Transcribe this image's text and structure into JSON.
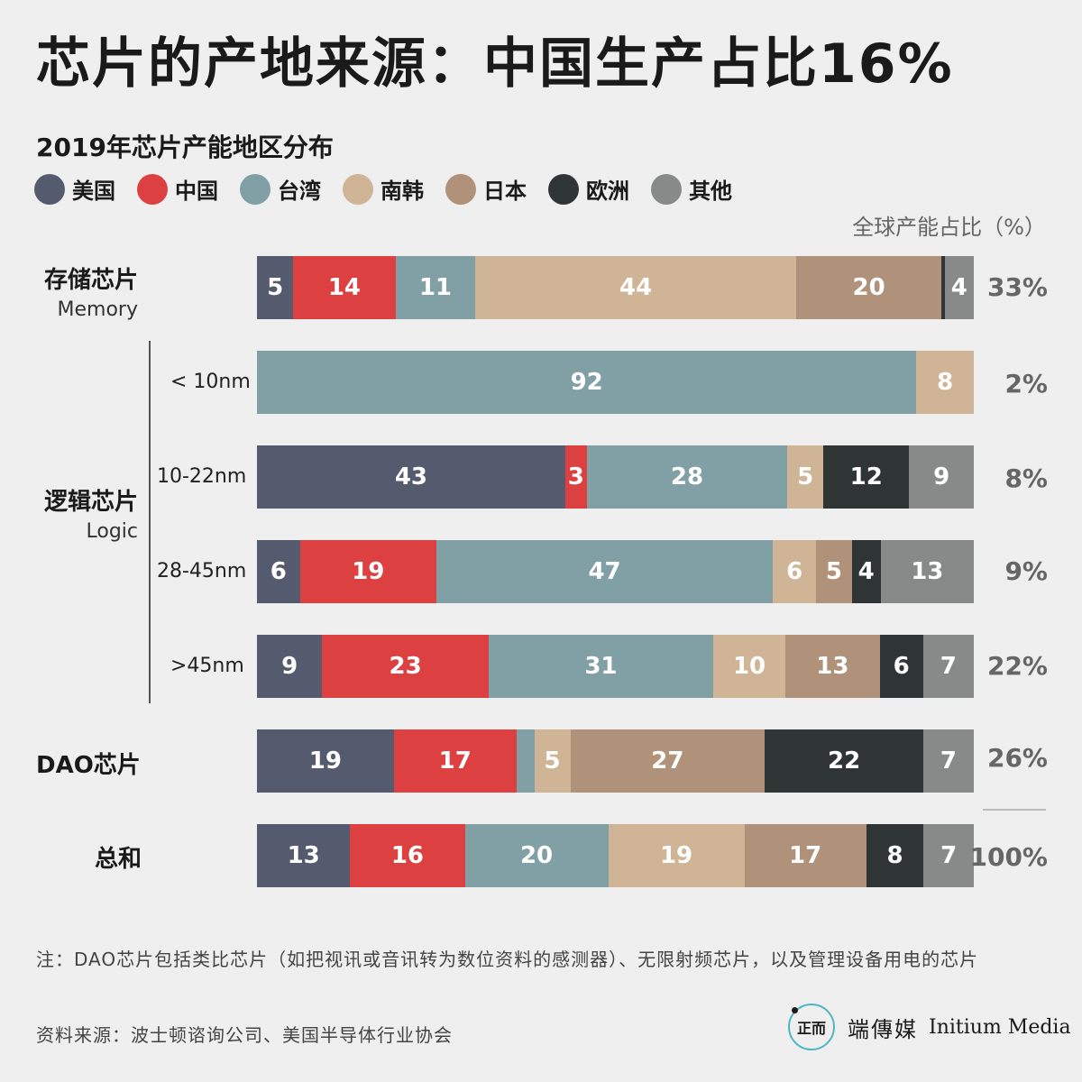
{
  "title": "芯片的产地来源：中国生产占比16%",
  "subtitle": "2019年芯片产能地区分布",
  "share_header": "全球产能占比（%）",
  "colors": {
    "美国": "#555b6e",
    "中国": "#dd4040",
    "台湾": "#80a0a5",
    "南韩": "#d0b496",
    "日本": "#b0917a",
    "欧洲": "#2f3535",
    "其他": "#888a8a",
    "separator": "#1a1a1a"
  },
  "chart_data": {
    "type": "bar",
    "stacked": true,
    "orientation": "horizontal",
    "legend_placement": "top-left",
    "grid": false,
    "title": "芯片的产地来源：中国生产占比16%",
    "subtitle": "2019年芯片产能地区分布",
    "legend": [
      "美国",
      "中国",
      "台湾",
      "南韩",
      "日本",
      "欧洲",
      "其他"
    ],
    "categories": [
      {
        "label": "存储芯片",
        "label_en": "Memory"
      },
      {
        "label": "逻辑芯片",
        "label_en": "Logic",
        "sub": "< 10nm"
      },
      {
        "label": "逻辑芯片",
        "label_en": "Logic",
        "sub": "10-22nm"
      },
      {
        "label": "逻辑芯片",
        "label_en": "Logic",
        "sub": "28-45nm"
      },
      {
        "label": "逻辑芯片",
        "label_en": "Logic",
        "sub": ">45nm"
      },
      {
        "label": "DAO芯片"
      },
      {
        "label": "总和"
      }
    ],
    "series": [
      {
        "name": "美国",
        "values": [
          5,
          0,
          43,
          6,
          9,
          19,
          13
        ]
      },
      {
        "name": "中国",
        "values": [
          14,
          0,
          3,
          19,
          23,
          17,
          16
        ]
      },
      {
        "name": "台湾",
        "values": [
          11,
          92,
          28,
          47,
          31,
          2.5,
          20
        ]
      },
      {
        "name": "南韩",
        "values": [
          44,
          8,
          5,
          6,
          10,
          5,
          19
        ]
      },
      {
        "name": "日本",
        "values": [
          20,
          0,
          0,
          5,
          13,
          27,
          17
        ]
      },
      {
        "name": "欧洲",
        "values": [
          0.4,
          0,
          12,
          4,
          6,
          22,
          8
        ]
      },
      {
        "name": "其他",
        "values": [
          4,
          0,
          9,
          13,
          7,
          7,
          7
        ]
      }
    ],
    "global_share": [
      "33%",
      "2%",
      "8%",
      "9%",
      "22%",
      "26%",
      "100%"
    ],
    "rows": [
      {
        "segs": [
          {
            "r": "美国",
            "v": 5,
            "label": "5"
          },
          {
            "r": "中国",
            "v": 14,
            "label": "14"
          },
          {
            "r": "台湾",
            "v": 11,
            "label": "11"
          },
          {
            "r": "南韩",
            "v": 44,
            "label": "44"
          },
          {
            "r": "日本",
            "v": 20,
            "label": "20"
          },
          {
            "r": "欧洲",
            "v": 0.4,
            "label": ""
          },
          {
            "r": "其他",
            "v": 4,
            "label": "4"
          }
        ]
      },
      {
        "segs": [
          {
            "r": "台湾",
            "v": 92,
            "label": "92"
          },
          {
            "r": "南韩",
            "v": 8,
            "label": "8"
          }
        ]
      },
      {
        "segs": [
          {
            "r": "美国",
            "v": 43,
            "label": "43"
          },
          {
            "r": "中国",
            "v": 3,
            "label": "3"
          },
          {
            "r": "台湾",
            "v": 28,
            "label": "28"
          },
          {
            "r": "南韩",
            "v": 5,
            "label": "5"
          },
          {
            "r": "欧洲",
            "v": 12,
            "label": "12"
          },
          {
            "r": "其他",
            "v": 9,
            "label": "9"
          }
        ]
      },
      {
        "segs": [
          {
            "r": "美国",
            "v": 6,
            "label": "6"
          },
          {
            "r": "中国",
            "v": 19,
            "label": "19"
          },
          {
            "r": "台湾",
            "v": 47,
            "label": "47"
          },
          {
            "r": "南韩",
            "v": 6,
            "label": "6"
          },
          {
            "r": "日本",
            "v": 5,
            "label": "5"
          },
          {
            "r": "欧洲",
            "v": 4,
            "label": "4"
          },
          {
            "r": "其他",
            "v": 13,
            "label": "13"
          }
        ]
      },
      {
        "segs": [
          {
            "r": "美国",
            "v": 9,
            "label": "9"
          },
          {
            "r": "中国",
            "v": 23,
            "label": "23"
          },
          {
            "r": "台湾",
            "v": 31,
            "label": "31"
          },
          {
            "r": "南韩",
            "v": 10,
            "label": "10"
          },
          {
            "r": "日本",
            "v": 13,
            "label": "13"
          },
          {
            "r": "欧洲",
            "v": 6,
            "label": "6"
          },
          {
            "r": "其他",
            "v": 7,
            "label": "7"
          }
        ]
      },
      {
        "segs": [
          {
            "r": "美国",
            "v": 19,
            "label": "19"
          },
          {
            "r": "中国",
            "v": 17,
            "label": "17"
          },
          {
            "r": "台湾",
            "v": 2.5,
            "label": ""
          },
          {
            "r": "南韩",
            "v": 5,
            "label": "5"
          },
          {
            "r": "日本",
            "v": 27,
            "label": "27"
          },
          {
            "r": "欧洲",
            "v": 22,
            "label": "22"
          },
          {
            "r": "其他",
            "v": 7,
            "label": "7"
          }
        ]
      },
      {
        "segs": [
          {
            "r": "美国",
            "v": 13,
            "label": "13"
          },
          {
            "r": "中国",
            "v": 16,
            "label": "16"
          },
          {
            "r": "台湾",
            "v": 20,
            "label": "20"
          },
          {
            "r": "南韩",
            "v": 19,
            "label": "19"
          },
          {
            "r": "日本",
            "v": 17,
            "label": "17"
          },
          {
            "r": "欧洲",
            "v": 8,
            "label": "8"
          },
          {
            "r": "其他",
            "v": 7,
            "label": "7"
          }
        ]
      }
    ]
  },
  "labels": {
    "memory_zh": "存储芯片",
    "memory_en": "Memory",
    "logic_zh": "逻辑芯片",
    "logic_en": "Logic",
    "logic_sub": [
      "< 10nm",
      "10-22nm",
      "28-45nm",
      ">45nm"
    ],
    "dao_zh": "DAO芯片",
    "total_zh": "总和"
  },
  "note": "注：DAO芯片包括类比芯片（如把视讯或音讯转为数位资料的感测器）、无限射频芯片，以及管理设备用电的芯片",
  "source": "资料来源：波士顿谘询公司、美国半导体行业协会",
  "logo": {
    "mark": "正而",
    "zh": "端傳媒",
    "en": "Initium Media"
  }
}
